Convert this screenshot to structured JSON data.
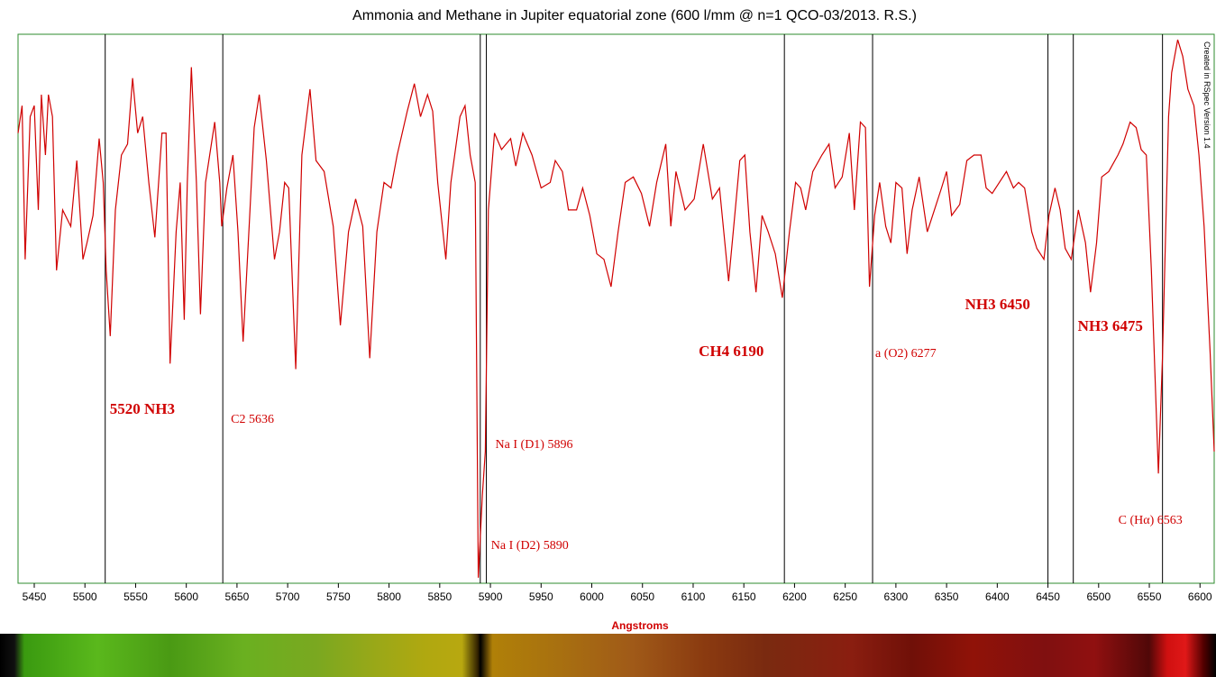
{
  "chart_data": {
    "type": "line",
    "title": "Ammonia and Methane in Jupiter equatorial zone (600 l/mm @ n=1 QCO-03/2013. R.S.)",
    "x_label": "Angstroms",
    "side_note": "Created in RSpec Version 1.4",
    "color": "#d00000",
    "xlim": [
      5434,
      6614
    ],
    "ylim": [
      0,
      100
    ],
    "xticks": [
      5450,
      5500,
      5550,
      5600,
      5650,
      5700,
      5750,
      5800,
      5850,
      5900,
      5950,
      6000,
      6050,
      6100,
      6150,
      6200,
      6250,
      6300,
      6350,
      6400,
      6450,
      6500,
      6550,
      6600
    ],
    "x": [
      5434,
      5438,
      5441,
      5446,
      5450,
      5454,
      5457,
      5461,
      5464,
      5468,
      5472,
      5478,
      5486,
      5492,
      5498,
      5502,
      5508,
      5514,
      5518,
      5521,
      5525,
      5530,
      5536,
      5542,
      5547,
      5552,
      5557,
      5563,
      5569,
      5576,
      5580,
      5584,
      5590,
      5594,
      5598,
      5601,
      5605,
      5610,
      5614,
      5619,
      5628,
      5633,
      5635,
      5640,
      5646,
      5651,
      5656,
      5662,
      5667,
      5672,
      5679,
      5687,
      5692,
      5697,
      5701,
      5708,
      5714,
      5722,
      5728,
      5736,
      5745,
      5752,
      5760,
      5767,
      5774,
      5781,
      5788,
      5795,
      5802,
      5808,
      5818,
      5825,
      5831,
      5838,
      5843,
      5848,
      5856,
      5861,
      5870,
      5875,
      5880,
      5885,
      5888,
      5892,
      5895,
      5898,
      5904,
      5911,
      5920,
      5925,
      5932,
      5941,
      5950,
      5959,
      5964,
      5971,
      5977,
      5985,
      5991,
      5998,
      6005,
      6012,
      6019,
      6026,
      6033,
      6041,
      6049,
      6057,
      6064,
      6073,
      6078,
      6083,
      6092,
      6101,
      6110,
      6119,
      6126,
      6135,
      6140,
      6146,
      6151,
      6156,
      6162,
      6168,
      6174,
      6181,
      6188,
      6195,
      6201,
      6206,
      6211,
      6218,
      6227,
      6234,
      6240,
      6247,
      6254,
      6259,
      6265,
      6270,
      6274,
      6279,
      6284,
      6290,
      6295,
      6300,
      6306,
      6311,
      6316,
      6323,
      6331,
      6338,
      6345,
      6350,
      6355,
      6363,
      6370,
      6377,
      6384,
      6389,
      6395,
      6402,
      6409,
      6416,
      6421,
      6427,
      6434,
      6439,
      6446,
      6451,
      6457,
      6462,
      6467,
      6473,
      6480,
      6487,
      6492,
      6498,
      6503,
      6510,
      6519,
      6524,
      6531,
      6537,
      6542,
      6547,
      6552,
      6559,
      6563,
      6569,
      6572,
      6578,
      6583,
      6588,
      6594,
      6599,
      6604,
      6610,
      6614
    ],
    "values": [
      82,
      87,
      59,
      85,
      87,
      68,
      89,
      78,
      89,
      85,
      57,
      68,
      65,
      77,
      59,
      62,
      67,
      81,
      73,
      57,
      45,
      68,
      78,
      80,
      92,
      82,
      85,
      73,
      63,
      82,
      82,
      40,
      64,
      73,
      48,
      73,
      94,
      73,
      49,
      73,
      84,
      73,
      65,
      72,
      78,
      64,
      44,
      65,
      83,
      89,
      77,
      59,
      64,
      73,
      72,
      39,
      78,
      90,
      77,
      75,
      65,
      47,
      64,
      70,
      65,
      41,
      64,
      73,
      72,
      78,
      86,
      91,
      85,
      89,
      86,
      73,
      59,
      73,
      85,
      87,
      78,
      73,
      1,
      16,
      24,
      68,
      82,
      79,
      81,
      76,
      82,
      78,
      72,
      73,
      77,
      75,
      68,
      68,
      72,
      67,
      60,
      59,
      54,
      64,
      73,
      74,
      71,
      65,
      73,
      80,
      65,
      75,
      68,
      70,
      80,
      70,
      72,
      55,
      65,
      77,
      78,
      64,
      53,
      67,
      64,
      60,
      52,
      64,
      73,
      72,
      68,
      75,
      78,
      80,
      72,
      74,
      82,
      68,
      84,
      83,
      54,
      67,
      73,
      65,
      62,
      73,
      72,
      60,
      68,
      74,
      64,
      68,
      72,
      75,
      67,
      69,
      77,
      78,
      78,
      72,
      71,
      73,
      75,
      72,
      73,
      72,
      64,
      61,
      59,
      67,
      72,
      68,
      61,
      59,
      68,
      62,
      53,
      62,
      74,
      75,
      78,
      80,
      84,
      83,
      79,
      78,
      57,
      20,
      41,
      85,
      93,
      99,
      96,
      90,
      87,
      78,
      65,
      42,
      24
    ],
    "annotations": [
      {
        "x": 5520,
        "label": "5520 NH3"
      },
      {
        "x": 5636,
        "label": "C2 5636"
      },
      {
        "x": 5890,
        "label": "Na I (D2) 5890"
      },
      {
        "x": 5896,
        "label": "Na I (D1) 5896"
      },
      {
        "x": 6190,
        "label": "CH4 6190"
      },
      {
        "x": 6277,
        "label": "a (O2) 6277"
      },
      {
        "x": 6450,
        "label": "NH3 6450"
      },
      {
        "x": 6475,
        "label": "NH3 6475"
      },
      {
        "x": 6563,
        "label": "C (Hα) 6563"
      }
    ]
  }
}
